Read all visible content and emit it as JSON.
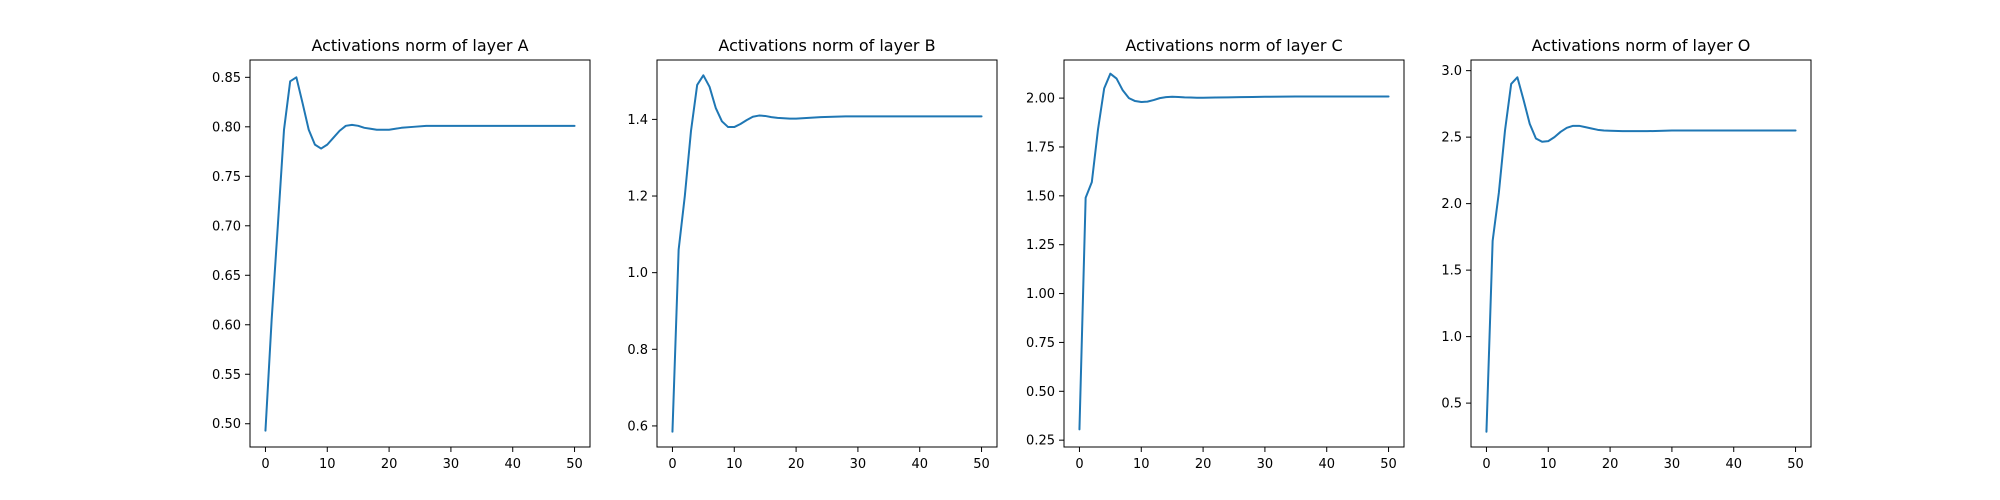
{
  "chart_data": [
    {
      "type": "line",
      "title": "Activations norm of layer A",
      "xlim": [
        -2.5,
        52.5
      ],
      "ylim": [
        0.4765,
        0.8675
      ],
      "xticks": [
        0,
        10,
        20,
        30,
        40,
        50
      ],
      "yticks": [
        0.5,
        0.55,
        0.6,
        0.65,
        0.7,
        0.75,
        0.8,
        0.85
      ],
      "ytick_decimals": 2,
      "x": [
        0,
        1,
        2,
        3,
        4,
        5,
        6,
        7,
        8,
        9,
        10,
        11,
        12,
        13,
        14,
        15,
        16,
        17,
        18,
        19,
        20,
        22,
        24,
        26,
        28,
        30,
        35,
        40,
        45,
        50
      ],
      "y": [
        0.493,
        0.605,
        0.7,
        0.797,
        0.846,
        0.85,
        0.824,
        0.797,
        0.782,
        0.778,
        0.782,
        0.789,
        0.796,
        0.801,
        0.802,
        0.801,
        0.799,
        0.798,
        0.797,
        0.797,
        0.797,
        0.799,
        0.8,
        0.801,
        0.801,
        0.801,
        0.801,
        0.801,
        0.801,
        0.801
      ],
      "grid": false,
      "color": "#1f77b4"
    },
    {
      "type": "line",
      "title": "Activations norm of layer B",
      "xlim": [
        -2.5,
        52.5
      ],
      "ylim": [
        0.545,
        1.555
      ],
      "xticks": [
        0,
        10,
        20,
        30,
        40,
        50
      ],
      "yticks": [
        0.6,
        0.8,
        1.0,
        1.2,
        1.4
      ],
      "ytick_decimals": 1,
      "x": [
        0,
        1,
        2,
        3,
        4,
        5,
        6,
        7,
        8,
        9,
        10,
        11,
        12,
        13,
        14,
        15,
        16,
        17,
        18,
        19,
        20,
        22,
        24,
        26,
        28,
        30,
        35,
        40,
        45,
        50
      ],
      "y": [
        0.585,
        1.06,
        1.2,
        1.37,
        1.49,
        1.515,
        1.485,
        1.43,
        1.395,
        1.38,
        1.38,
        1.388,
        1.398,
        1.407,
        1.41,
        1.409,
        1.406,
        1.404,
        1.403,
        1.402,
        1.402,
        1.404,
        1.406,
        1.407,
        1.408,
        1.408,
        1.408,
        1.408,
        1.408,
        1.408
      ],
      "grid": false,
      "color": "#1f77b4"
    },
    {
      "type": "line",
      "title": "Activations norm of layer C",
      "xlim": [
        -2.5,
        52.5
      ],
      "ylim": [
        0.215,
        2.195
      ],
      "xticks": [
        0,
        10,
        20,
        30,
        40,
        50
      ],
      "yticks": [
        0.25,
        0.5,
        0.75,
        1.0,
        1.25,
        1.5,
        1.75,
        2.0
      ],
      "ytick_decimals": 2,
      "x": [
        0,
        1,
        2,
        3,
        4,
        5,
        6,
        7,
        8,
        9,
        10,
        11,
        12,
        13,
        14,
        15,
        16,
        17,
        18,
        19,
        20,
        22,
        24,
        26,
        28,
        30,
        35,
        40,
        45,
        50
      ],
      "y": [
        0.305,
        1.49,
        1.57,
        1.84,
        2.05,
        2.125,
        2.1,
        2.04,
        2.0,
        1.985,
        1.98,
        1.982,
        1.99,
        2.0,
        2.005,
        2.007,
        2.006,
        2.004,
        2.003,
        2.002,
        2.002,
        2.003,
        2.004,
        2.005,
        2.006,
        2.007,
        2.008,
        2.008,
        2.008,
        2.008
      ],
      "grid": false,
      "color": "#1f77b4"
    },
    {
      "type": "line",
      "title": "Activations norm of layer O",
      "xlim": [
        -2.5,
        52.5
      ],
      "ylim": [
        0.17,
        3.08
      ],
      "xticks": [
        0,
        10,
        20,
        30,
        40,
        50
      ],
      "yticks": [
        0.5,
        1.0,
        1.5,
        2.0,
        2.5,
        3.0
      ],
      "ytick_decimals": 1,
      "x": [
        0,
        1,
        2,
        3,
        4,
        5,
        6,
        7,
        8,
        9,
        10,
        11,
        12,
        13,
        14,
        15,
        16,
        17,
        18,
        19,
        20,
        22,
        24,
        26,
        28,
        30,
        35,
        40,
        45,
        50
      ],
      "y": [
        0.285,
        1.72,
        2.08,
        2.55,
        2.9,
        2.95,
        2.78,
        2.6,
        2.49,
        2.465,
        2.47,
        2.5,
        2.54,
        2.57,
        2.585,
        2.585,
        2.575,
        2.565,
        2.555,
        2.55,
        2.548,
        2.545,
        2.545,
        2.545,
        2.547,
        2.55,
        2.55,
        2.55,
        2.55,
        2.55
      ],
      "grid": false,
      "color": "#1f77b4"
    }
  ]
}
